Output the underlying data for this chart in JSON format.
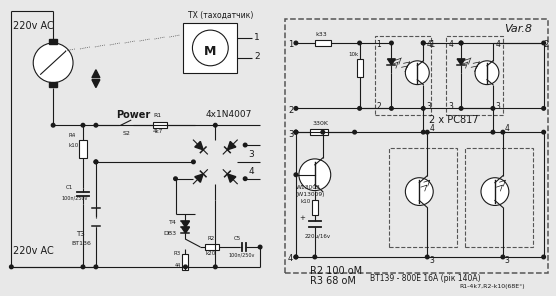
{
  "bg_color": "#e8e8e8",
  "line_color": "#1a1a1a",
  "fig_width": 5.56,
  "fig_height": 2.96,
  "dpi": 100,
  "labels": {
    "ac_left": "220v AC",
    "ac_bottom": "220v AC",
    "tx": "TX (таходатчик)",
    "power": "Power",
    "diode_bridge": "4x1N4007",
    "var8": "Var.8",
    "pc817": "2 x PC817",
    "r2_label": "R2 100 оМ",
    "r3_label": "R3 68 оМ",
    "bt139_label": "BT139 - 800E 16A (рік 140A)",
    "r1_label": "R1-4k7,R2-k10(68E°)",
    "r1_val": "4k7",
    "r2_val": "k20",
    "r4_val": "k10",
    "c1_val": "100n/250v",
    "c5_val": "100n/250v",
    "bt136": "BT136",
    "t3": "T3",
    "t4": "T4",
    "db3": "DB3",
    "k33": "k33",
    "ohm330k": "330K",
    "k10_val": "k10",
    "cap220": "220μ/16v",
    "w13003": "W13003",
    "w13009": "(W13009)",
    "r1_lbl": "R1",
    "r2_lbl": "R2",
    "r3_lbl": "R3",
    "r4_lbl": "R4",
    "c1_lbl": "C1",
    "c5_lbl": "C5",
    "s2_lbl": "S2",
    "ohm10k": "10k"
  }
}
